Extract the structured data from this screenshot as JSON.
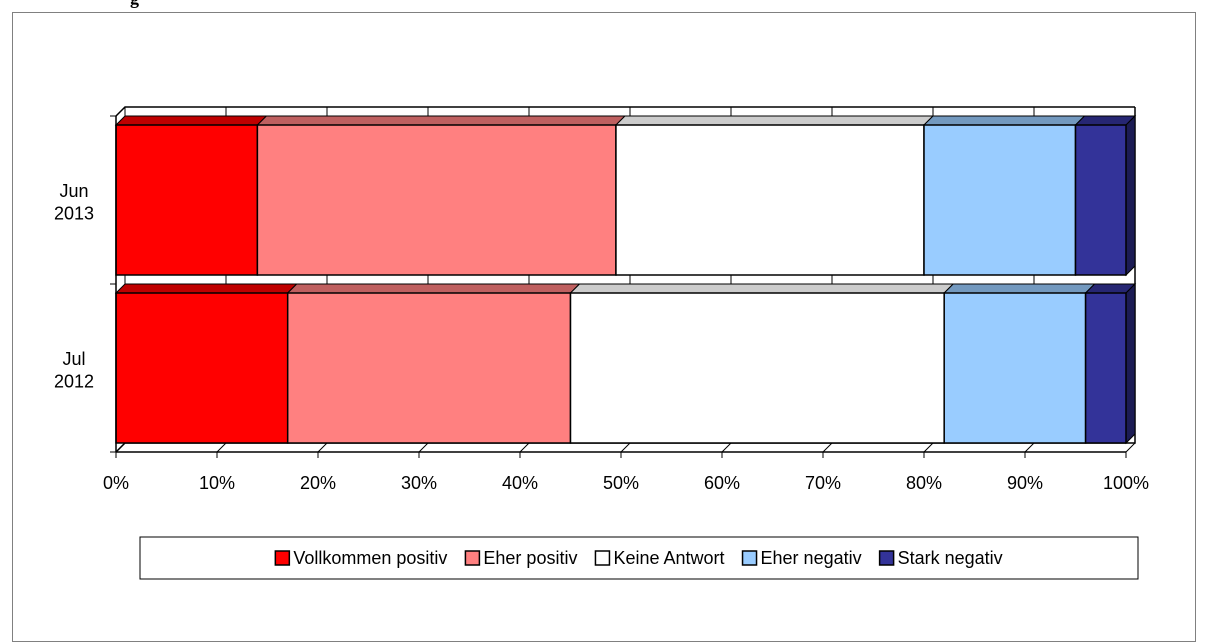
{
  "header_fragment": "g",
  "chart_data": {
    "type": "bar",
    "orientation": "horizontal",
    "stacked": "percent",
    "style": "3d",
    "categories": [
      "Jul 2012",
      "Jun 2013"
    ],
    "category_lines": [
      [
        "Jul",
        "2012"
      ],
      [
        "Jun",
        "2013"
      ]
    ],
    "series": [
      {
        "name": "Vollkommen positiv",
        "values": [
          17,
          14
        ],
        "color": "#ff0000"
      },
      {
        "name": "Eher positiv",
        "values": [
          28,
          35.5
        ],
        "color": "#ff8080"
      },
      {
        "name": "Keine Antwort",
        "values": [
          37,
          30.5
        ],
        "color": "#ffffff"
      },
      {
        "name": "Eher negativ",
        "values": [
          14,
          15
        ],
        "color": "#99ccff"
      },
      {
        "name": "Stark  negativ",
        "values": [
          4,
          5
        ],
        "color": "#333399"
      }
    ],
    "xlim": [
      0,
      100
    ],
    "x_ticks": [
      "0%",
      "10%",
      "20%",
      "30%",
      "40%",
      "50%",
      "60%",
      "70%",
      "80%",
      "90%",
      "100%"
    ],
    "grid": "vertical",
    "legend": "bottom"
  }
}
